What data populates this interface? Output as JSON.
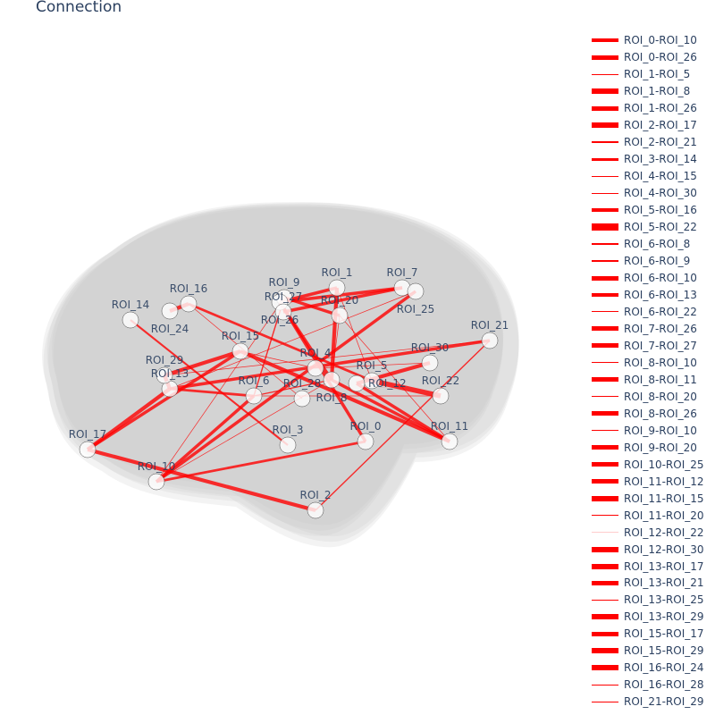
{
  "title": "Connection",
  "chart_data": {
    "type": "3d-network",
    "title": "Connection",
    "edge_color": "#ff0000",
    "node_color": "#ffffff",
    "background_shape": "brain-mesh",
    "nodes": [
      "ROI_0",
      "ROI_1",
      "ROI_2",
      "ROI_3",
      "ROI_4",
      "ROI_5",
      "ROI_6",
      "ROI_7",
      "ROI_8",
      "ROI_9",
      "ROI_10",
      "ROI_11",
      "ROI_12",
      "ROI_13",
      "ROI_14",
      "ROI_15",
      "ROI_16",
      "ROI_17",
      "ROI_20",
      "ROI_21",
      "ROI_22",
      "ROI_24",
      "ROI_25",
      "ROI_26",
      "ROI_27",
      "ROI_28",
      "ROI_29",
      "ROI_30"
    ],
    "edges": [
      {
        "name": "ROI_0-ROI_10",
        "strength": 4
      },
      {
        "name": "ROI_0-ROI_26",
        "strength": 5
      },
      {
        "name": "ROI_1-ROI_5",
        "strength": 1
      },
      {
        "name": "ROI_1-ROI_8",
        "strength": 6
      },
      {
        "name": "ROI_1-ROI_26",
        "strength": 5
      },
      {
        "name": "ROI_2-ROI_17",
        "strength": 6
      },
      {
        "name": "ROI_2-ROI_21",
        "strength": 2
      },
      {
        "name": "ROI_3-ROI_14",
        "strength": 3
      },
      {
        "name": "ROI_4-ROI_15",
        "strength": 1
      },
      {
        "name": "ROI_4-ROI_30",
        "strength": 1
      },
      {
        "name": "ROI_5-ROI_16",
        "strength": 4
      },
      {
        "name": "ROI_5-ROI_22",
        "strength": 8
      },
      {
        "name": "ROI_6-ROI_8",
        "strength": 2
      },
      {
        "name": "ROI_6-ROI_9",
        "strength": 2
      },
      {
        "name": "ROI_6-ROI_10",
        "strength": 5
      },
      {
        "name": "ROI_6-ROI_13",
        "strength": 4
      },
      {
        "name": "ROI_6-ROI_22",
        "strength": 1
      },
      {
        "name": "ROI_7-ROI_26",
        "strength": 5
      },
      {
        "name": "ROI_7-ROI_27",
        "strength": 5
      },
      {
        "name": "ROI_8-ROI_10",
        "strength": 1
      },
      {
        "name": "ROI_8-ROI_11",
        "strength": 5
      },
      {
        "name": "ROI_8-ROI_20",
        "strength": 1
      },
      {
        "name": "ROI_8-ROI_26",
        "strength": 5
      },
      {
        "name": "ROI_9-ROI_10",
        "strength": 1
      },
      {
        "name": "ROI_9-ROI_20",
        "strength": 5
      },
      {
        "name": "ROI_10-ROI_25",
        "strength": 5
      },
      {
        "name": "ROI_11-ROI_12",
        "strength": 5
      },
      {
        "name": "ROI_11-ROI_15",
        "strength": 6
      },
      {
        "name": "ROI_11-ROI_20",
        "strength": 1
      },
      {
        "name": "ROI_12-ROI_22",
        "strength": 0.5
      },
      {
        "name": "ROI_12-ROI_30",
        "strength": 6
      },
      {
        "name": "ROI_13-ROI_17",
        "strength": 6
      },
      {
        "name": "ROI_13-ROI_21",
        "strength": 5
      },
      {
        "name": "ROI_13-ROI_25",
        "strength": 1
      },
      {
        "name": "ROI_13-ROI_29",
        "strength": 6
      },
      {
        "name": "ROI_15-ROI_17",
        "strength": 5
      },
      {
        "name": "ROI_15-ROI_29",
        "strength": 6
      },
      {
        "name": "ROI_16-ROI_24",
        "strength": 6
      },
      {
        "name": "ROI_16-ROI_28",
        "strength": 1
      },
      {
        "name": "ROI_21-ROI_29",
        "strength": 1
      }
    ],
    "legend_placement": "right"
  }
}
